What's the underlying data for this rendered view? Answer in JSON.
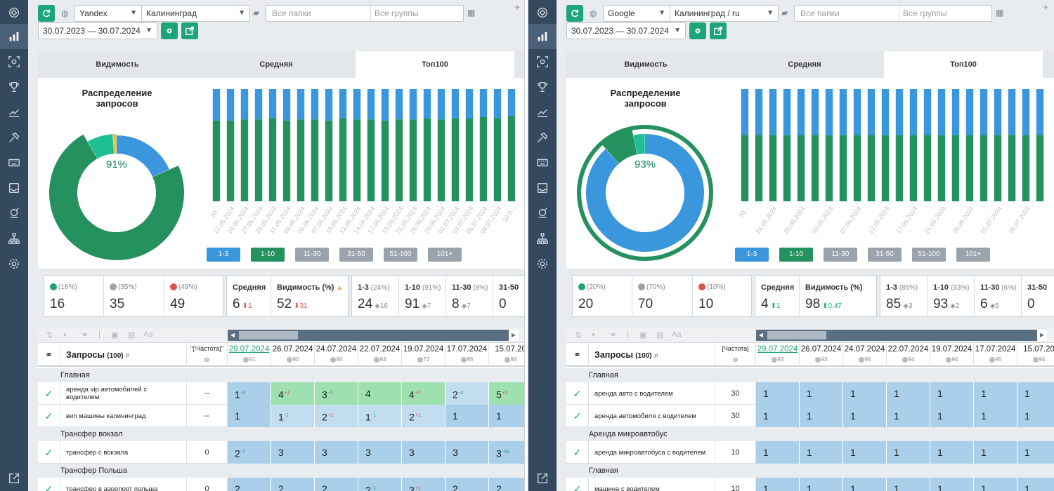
{
  "panes": [
    {
      "id": "left",
      "engine": "Yandex",
      "region": "Калининград",
      "folders_placeholder": "Все папки",
      "groups_placeholder": "Все группы",
      "date_range": "30.07.2023 — 30.07.2024",
      "tabs": [
        "Видимость",
        "Средняя",
        "Топ100"
      ],
      "active_tab": 2,
      "donut_title_1": "Распределение",
      "donut_title_2": "запросов",
      "donut_pct": "91%",
      "donut_segments": [
        0.18,
        0.72,
        0.07,
        0.01
      ],
      "bar_dates": [
        "20...",
        "22.05.2024",
        "24.05.2024",
        "27.05.2024",
        "29.05.2024",
        "31.05.2024",
        "03.06.2024",
        "05.06.2024",
        "07.06.2024",
        "10.06.2024",
        "12.06.2024",
        "14.06.2024",
        "17.06.2024",
        "19.06.2024",
        "21.06.2024",
        "26.06.2024",
        "28.06.2024",
        "01.07.2024",
        "03.07.2024",
        "05.07.2024",
        "08.07.2024",
        "10.0..."
      ],
      "bar_green": [
        0.72,
        0.72,
        0.73,
        0.73,
        0.74,
        0.72,
        0.73,
        0.73,
        0.72,
        0.74,
        0.73,
        0.73,
        0.72,
        0.73,
        0.73,
        0.74,
        0.73,
        0.74,
        0.74,
        0.75,
        0.74,
        0.76
      ],
      "legend": [
        "1-3",
        "1-10",
        "11-30",
        "31-50",
        "51-100",
        "101+"
      ],
      "stats": {
        "up_pct": "(16%)",
        "up_val": "16",
        "eq_pct": "(35%)",
        "eq_val": "35",
        "down_pct": "(49%)",
        "down_val": "49",
        "avg_label": "Средняя",
        "avg_val": "6",
        "avg_delta": "1",
        "vis_label": "Видимость (%)",
        "vis_val": "52",
        "vis_delta": "31",
        "t13_label": "1-3",
        "t13_pct": "(24%)",
        "t13_val": "24",
        "t13_delta": "16",
        "t110_label": "1-10",
        "t110_pct": "(91%)",
        "t110_val": "91",
        "t110_delta": "7",
        "t1130_label": "11-30",
        "t1130_pct": "(8%)",
        "t1130_val": "8",
        "t1130_delta": "7",
        "t3150_label": "31-50",
        "t3150_val": "0"
      },
      "table": {
        "query_header": "Запросы",
        "query_count": "(100)",
        "freq_header": "\"[!Частота]\"",
        "dates": [
          {
            "d": "29.07.2024",
            "s": "91"
          },
          {
            "d": "26.07.2024",
            "s": "90"
          },
          {
            "d": "24.07.2024",
            "s": "86"
          },
          {
            "d": "22.07.2024",
            "s": "93"
          },
          {
            "d": "19.07.2024",
            "s": "72"
          },
          {
            "d": "17.07.2024",
            "s": "95"
          },
          {
            "d": "15.07.20",
            "s": "86"
          }
        ],
        "groups": [
          {
            "name": "Главная",
            "rows": [
              {
                "q": "аренда vip автомобилей с водителем",
                "f": "--",
                "cells": [
                  [
                    "1",
                    "-3",
                    "u",
                    "blue"
                  ],
                  [
                    "4",
                    "+1",
                    "d",
                    "green"
                  ],
                  [
                    "3",
                    "-1",
                    "u",
                    "green"
                  ],
                  [
                    "4",
                    "",
                    "",
                    "green"
                  ],
                  [
                    "4",
                    "+2",
                    "d",
                    "green"
                  ],
                  [
                    "2",
                    "-3",
                    "u",
                    "lblue"
                  ],
                  [
                    "5",
                    "+2",
                    "d",
                    "green"
                  ]
                ]
              },
              {
                "q": "вип машины калининград",
                "f": "--",
                "cells": [
                  [
                    "1",
                    "",
                    "",
                    "blue"
                  ],
                  [
                    "1",
                    "-1",
                    "u",
                    "lblue"
                  ],
                  [
                    "2",
                    "+1",
                    "d",
                    "lblue"
                  ],
                  [
                    "1",
                    "-1",
                    "u",
                    "lblue"
                  ],
                  [
                    "2",
                    "+1",
                    "d",
                    "lblue"
                  ],
                  [
                    "1",
                    "",
                    "",
                    "blue"
                  ],
                  [
                    "1",
                    "",
                    "",
                    "blue"
                  ]
                ]
              }
            ]
          },
          {
            "name": "Трансфер вокзал",
            "rows": [
              {
                "q": "трансфер с вокзала",
                "f": "0",
                "cells": [
                  [
                    "2",
                    "-1",
                    "u",
                    "blue"
                  ],
                  [
                    "3",
                    "",
                    "",
                    "blue"
                  ],
                  [
                    "3",
                    "",
                    "",
                    "blue"
                  ],
                  [
                    "3",
                    "",
                    "",
                    "blue"
                  ],
                  [
                    "3",
                    "",
                    "",
                    "blue"
                  ],
                  [
                    "3",
                    "",
                    "",
                    "blue"
                  ],
                  [
                    "3",
                    "-30",
                    "u",
                    "blue"
                  ]
                ]
              }
            ]
          },
          {
            "name": "Трансфер Польша",
            "rows": [
              {
                "q": "трансфер в аэропорт польша",
                "f": "0",
                "cells": [
                  [
                    "2",
                    "",
                    "",
                    "blue"
                  ],
                  [
                    "2",
                    "",
                    "",
                    "blue"
                  ],
                  [
                    "2",
                    "",
                    "",
                    "blue"
                  ],
                  [
                    "2",
                    "-1",
                    "u",
                    "blue"
                  ],
                  [
                    "3",
                    "+1",
                    "d",
                    "blue"
                  ],
                  [
                    "2",
                    "",
                    "",
                    "blue"
                  ],
                  [
                    "2",
                    "",
                    "",
                    "blue"
                  ]
                ]
              }
            ]
          }
        ]
      }
    },
    {
      "id": "right",
      "engine": "Google",
      "region": "Калининград / ru",
      "folders_placeholder": "Все папки",
      "groups_placeholder": "Все группы",
      "date_range": "30.07.2023 — 30.07.2024",
      "tabs": [
        "Видимость",
        "Средняя",
        "Топ100"
      ],
      "active_tab": 2,
      "donut_title_1": "Распределение",
      "donut_title_2": "запросов",
      "donut_pct": "93%",
      "donut_segments": [
        0.84,
        0.08,
        0.03,
        0.0
      ],
      "bar_dates": [
        "20...",
        "24.05.2024",
        "29.05.2024",
        "03.06.2024",
        "07.06.2024",
        "12.06.2024",
        "17.06.2024",
        "21.06.2024",
        "26.06.2024",
        "01.07.2024",
        "05.07.2024"
      ],
      "bar_green": [
        0.59,
        0.59,
        0.59,
        0.59,
        0.59,
        0.59,
        0.59,
        0.59,
        0.59,
        0.59,
        0.59,
        0.59,
        0.59,
        0.59,
        0.59,
        0.59,
        0.59,
        0.59,
        0.59,
        0.59,
        0.59,
        0.59
      ],
      "legend": [
        "1-3",
        "1-10",
        "11-30",
        "31-50",
        "51-100",
        "101+"
      ],
      "stats": {
        "up_pct": "(20%)",
        "up_val": "20",
        "eq_pct": "(70%)",
        "eq_val": "70",
        "down_pct": "(10%)",
        "down_val": "10",
        "avg_label": "Средняя",
        "avg_val": "4",
        "avg_delta": "1",
        "vis_label": "Видимость (%)",
        "vis_val": "98",
        "vis_delta": "0.47",
        "t13_label": "1-3",
        "t13_pct": "(85%)",
        "t13_val": "85",
        "t13_delta": "3",
        "t110_label": "1-10",
        "t110_pct": "(93%)",
        "t110_val": "93",
        "t110_delta": "2",
        "t1130_label": "11-30",
        "t1130_pct": "(6%)",
        "t1130_val": "6",
        "t1130_delta": "5",
        "t3150_label": "31-50",
        "t3150_val": "0"
      },
      "table": {
        "query_header": "Запросы",
        "query_count": "(100)",
        "freq_header": "[Частота]",
        "dates": [
          {
            "d": "29.07.2024",
            "s": "93"
          },
          {
            "d": "26.07.2024",
            "s": "93"
          },
          {
            "d": "24.07.2024",
            "s": "96"
          },
          {
            "d": "22.07.2024",
            "s": "94"
          },
          {
            "d": "19.07.2024",
            "s": "94"
          },
          {
            "d": "17.07.2024",
            "s": "95"
          },
          {
            "d": "15.07.20",
            "s": "94"
          }
        ],
        "groups": [
          {
            "name": "Главная",
            "rows": [
              {
                "q": "аренда авто с водителем",
                "f": "30",
                "cells": [
                  [
                    "1",
                    "",
                    "",
                    "blue"
                  ],
                  [
                    "1",
                    "",
                    "",
                    "blue"
                  ],
                  [
                    "1",
                    "",
                    "",
                    "blue"
                  ],
                  [
                    "1",
                    "",
                    "",
                    "blue"
                  ],
                  [
                    "1",
                    "",
                    "",
                    "blue"
                  ],
                  [
                    "1",
                    "",
                    "",
                    "blue"
                  ],
                  [
                    "1",
                    "",
                    "",
                    "blue"
                  ]
                ]
              },
              {
                "q": "аренда автомобиля с водителем",
                "f": "30",
                "cells": [
                  [
                    "1",
                    "",
                    "",
                    "blue"
                  ],
                  [
                    "1",
                    "",
                    "",
                    "blue"
                  ],
                  [
                    "1",
                    "",
                    "",
                    "blue"
                  ],
                  [
                    "1",
                    "",
                    "",
                    "blue"
                  ],
                  [
                    "1",
                    "",
                    "",
                    "blue"
                  ],
                  [
                    "1",
                    "",
                    "",
                    "blue"
                  ],
                  [
                    "1",
                    "",
                    "",
                    "blue"
                  ]
                ]
              }
            ]
          },
          {
            "name": "Аренда микроавтобус",
            "rows": [
              {
                "q": "аренда микроавтобуса с водителем",
                "f": "10",
                "cells": [
                  [
                    "1",
                    "",
                    "",
                    "blue"
                  ],
                  [
                    "1",
                    "",
                    "",
                    "blue"
                  ],
                  [
                    "1",
                    "",
                    "",
                    "blue"
                  ],
                  [
                    "1",
                    "",
                    "",
                    "blue"
                  ],
                  [
                    "1",
                    "",
                    "",
                    "blue"
                  ],
                  [
                    "1",
                    "",
                    "",
                    "blue"
                  ],
                  [
                    "1",
                    "",
                    "",
                    "blue"
                  ]
                ]
              }
            ]
          },
          {
            "name": "Главная",
            "rows": [
              {
                "q": "машина с водителем",
                "f": "10",
                "cells": [
                  [
                    "1",
                    "",
                    "",
                    "blue"
                  ],
                  [
                    "1",
                    "",
                    "",
                    "blue"
                  ],
                  [
                    "1",
                    "",
                    "",
                    "blue"
                  ],
                  [
                    "1",
                    "",
                    "",
                    "blue"
                  ],
                  [
                    "1",
                    "",
                    "",
                    "blue"
                  ],
                  [
                    "1",
                    "",
                    "",
                    "blue"
                  ],
                  [
                    "1",
                    "",
                    "",
                    "blue"
                  ]
                ]
              }
            ]
          }
        ]
      }
    }
  ],
  "colors": {
    "sidebar": "#34495e",
    "accent_green": "#1da57a",
    "bar_blue": "#3b97dd",
    "bar_green": "#24915f",
    "donut_blue": "#3b97dd",
    "donut_green": "#24915f",
    "donut_teal": "#1fbf95",
    "donut_yellow": "#f0c23c",
    "legend_blue": "#3b97dd",
    "legend_green": "#24915f",
    "legend_grey": "#9aa3ab"
  }
}
